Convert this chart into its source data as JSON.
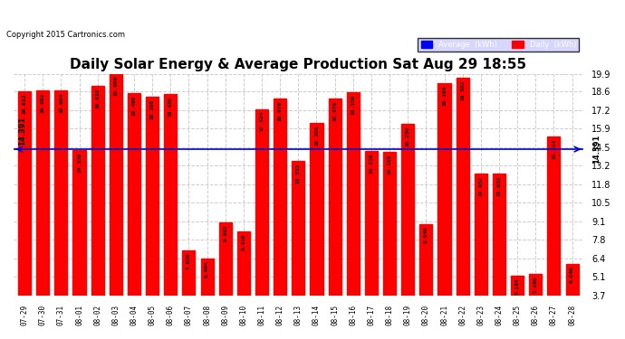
{
  "title": "Daily Solar Energy & Average Production Sat Aug 29 18:55",
  "copyright": "Copyright 2015 Cartronics.com",
  "average_value": 14.391,
  "bar_color": "#ff0000",
  "average_line_color": "#0000cc",
  "categories": [
    "07-29",
    "07-30",
    "07-31",
    "08-01",
    "08-02",
    "08-03",
    "08-04",
    "08-05",
    "08-06",
    "08-07",
    "08-08",
    "08-09",
    "08-10",
    "08-11",
    "08-12",
    "08-13",
    "08-14",
    "08-15",
    "08-16",
    "08-17",
    "08-18",
    "08-19",
    "08-20",
    "08-21",
    "08-22",
    "08-23",
    "08-24",
    "08-25",
    "08-26",
    "08-27",
    "08-28"
  ],
  "values": [
    18.612,
    18.682,
    18.664,
    14.338,
    19.016,
    19.9,
    18.496,
    18.2,
    18.436,
    7.02,
    6.404,
    9.082,
    8.41,
    17.324,
    18.076,
    13.532,
    16.308,
    18.076,
    18.536,
    14.236,
    14.188,
    16.256,
    8.948,
    19.194,
    19.582,
    12.632,
    12.632,
    5.184,
    5.28,
    15.314,
    6.046
  ],
  "ylim": [
    3.7,
    19.9
  ],
  "yticks": [
    3.7,
    5.1,
    6.4,
    7.8,
    9.1,
    10.5,
    11.8,
    13.2,
    14.5,
    15.9,
    17.2,
    18.6,
    19.9
  ],
  "background_color": "#ffffff",
  "plot_bg_color": "#ffffff",
  "grid_color": "#cccccc",
  "legend_avg_color": "#0000ff",
  "legend_daily_color": "#ff0000",
  "bar_width": 0.7
}
